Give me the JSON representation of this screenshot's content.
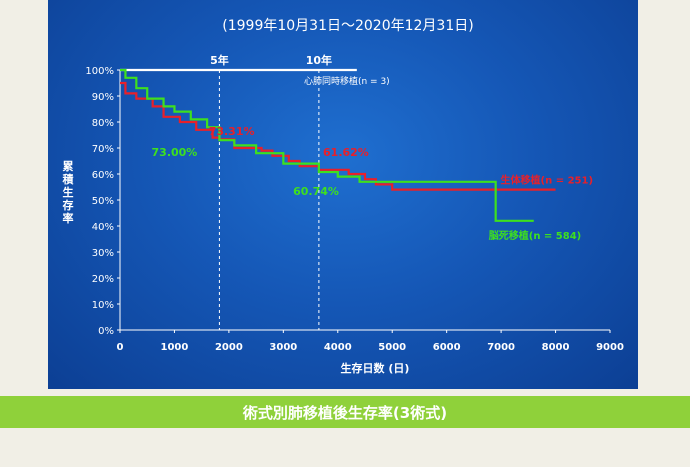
{
  "caption": "術式別肺移植後生存率(3術式)",
  "colors": {
    "background": "#f1efe6",
    "caption_bar": "#8fd13a",
    "chart_bg": "#1557b6",
    "living_series": "#e8202a",
    "brain_dead_series": "#3ee01e",
    "heart_lung_series": "#ffffff"
  },
  "chart_data": {
    "type": "line",
    "title": "(1999年10月31日～2020年12月31日)",
    "xlabel": "生存日数 (日)",
    "ylabel": "累積生存率",
    "xlim": [
      0,
      9000
    ],
    "ylim": [
      0,
      100
    ],
    "xticks": [
      "0",
      "1000",
      "2000",
      "3000",
      "4000",
      "5000",
      "6000",
      "7000",
      "8000",
      "9000"
    ],
    "yticks": [
      "0%",
      "10%",
      "20%",
      "30%",
      "40%",
      "50%",
      "60%",
      "70%",
      "80%",
      "90%",
      "100%"
    ],
    "grid": false,
    "reference_lines": [
      {
        "label": "5年",
        "x": 1826
      },
      {
        "label": "10年",
        "x": 3653
      }
    ],
    "series": [
      {
        "name": "心肺同時移植",
        "label": "心肺同時移植(n = 3)",
        "color": "#ffffff",
        "step": true,
        "points": [
          [
            0,
            100
          ],
          [
            4350,
            100
          ]
        ]
      },
      {
        "name": "生体移植",
        "label": "生体移植(n = 251)",
        "color": "#e8202a",
        "step": true,
        "points": [
          [
            0,
            95
          ],
          [
            100,
            91
          ],
          [
            300,
            89
          ],
          [
            600,
            86
          ],
          [
            800,
            82
          ],
          [
            1100,
            80
          ],
          [
            1400,
            77
          ],
          [
            1700,
            74
          ],
          [
            1826,
            73.31
          ],
          [
            2100,
            70
          ],
          [
            2600,
            69
          ],
          [
            2800,
            67
          ],
          [
            3100,
            65
          ],
          [
            3300,
            63
          ],
          [
            3653,
            61.62
          ],
          [
            4200,
            60
          ],
          [
            4500,
            58
          ],
          [
            4700,
            56
          ],
          [
            5000,
            54
          ],
          [
            5500,
            54
          ],
          [
            8000,
            54
          ]
        ]
      },
      {
        "name": "脳死移植",
        "label": "脳死移植(n = 584)",
        "color": "#3ee01e",
        "step": true,
        "points": [
          [
            0,
            100
          ],
          [
            100,
            97
          ],
          [
            300,
            93
          ],
          [
            500,
            89
          ],
          [
            800,
            86
          ],
          [
            1000,
            84
          ],
          [
            1300,
            81
          ],
          [
            1600,
            78
          ],
          [
            1826,
            73
          ],
          [
            2100,
            71
          ],
          [
            2500,
            68
          ],
          [
            3000,
            64
          ],
          [
            3653,
            60.74
          ],
          [
            4000,
            59
          ],
          [
            4400,
            57
          ],
          [
            5000,
            57
          ],
          [
            6900,
            57
          ],
          [
            6900,
            42
          ],
          [
            7600,
            42
          ]
        ]
      }
    ],
    "annotations": [
      {
        "text": "73.31%",
        "x": 2050,
        "y": 75,
        "color": "#e8202a"
      },
      {
        "text": "61.62%",
        "x": 4150,
        "y": 67,
        "color": "#e8202a"
      },
      {
        "text": "73.00%",
        "x": 1000,
        "y": 67,
        "color": "#3ee01e"
      },
      {
        "text": "60.74%",
        "x": 3600,
        "y": 52,
        "color": "#3ee01e"
      }
    ]
  }
}
